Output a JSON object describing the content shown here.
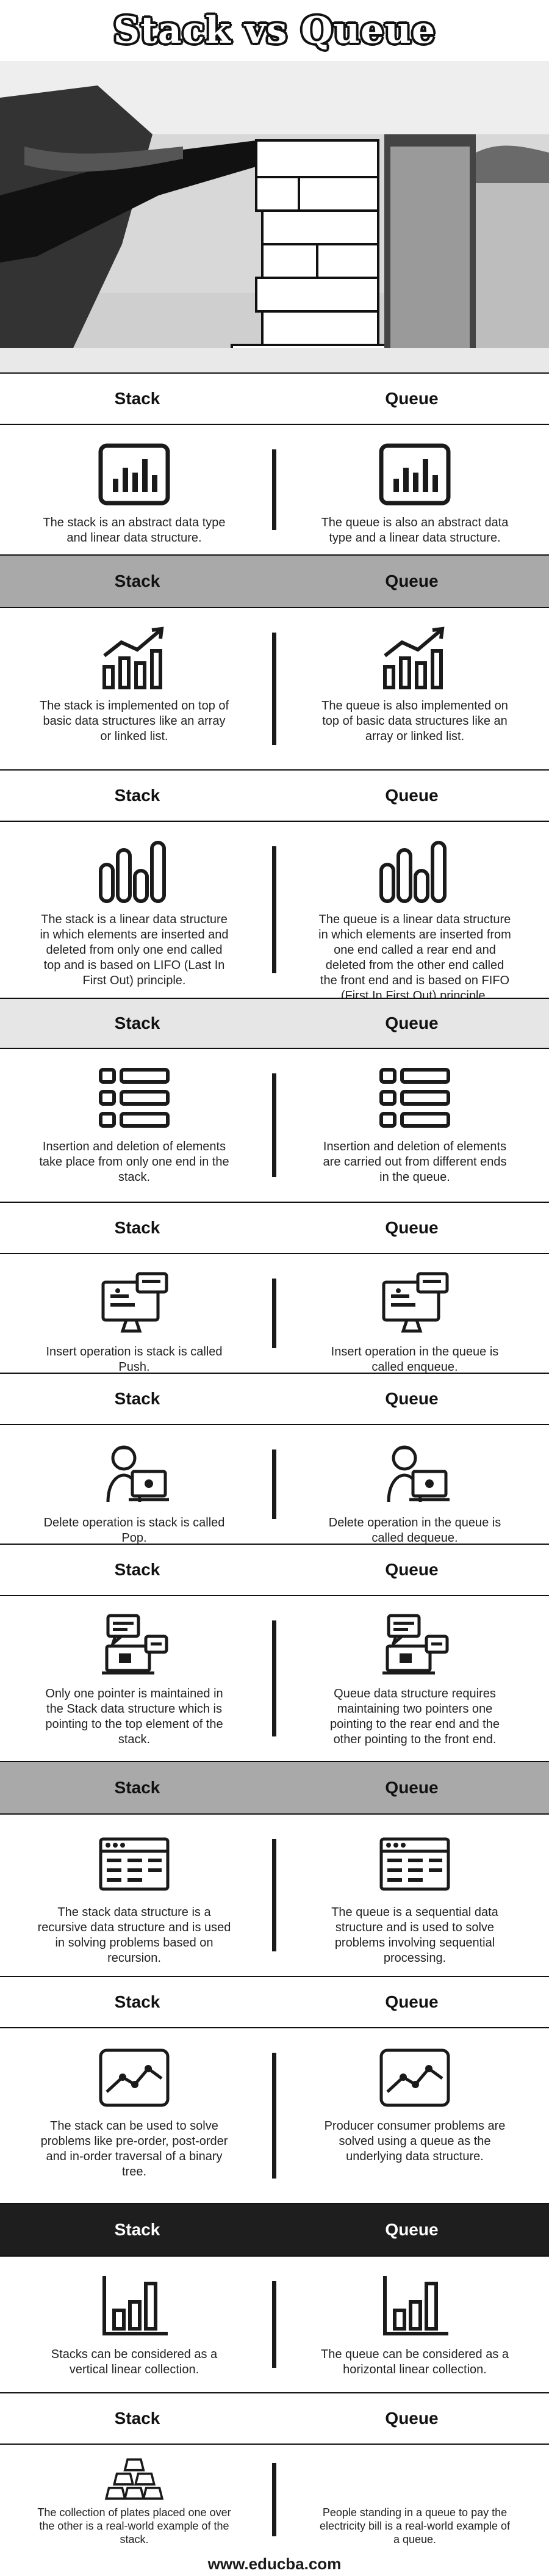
{
  "title": "Stack vs Queue",
  "headers": {
    "left": "Stack",
    "right": "Queue"
  },
  "rows": [
    {
      "icon": "bar-chart-box-icon",
      "left": "The stack is an abstract data type and linear data structure.",
      "right": "The queue is also an abstract data type and a linear data structure."
    },
    {
      "icon": "growth-chart-icon",
      "left": "The stack is implemented on top of basic data structures like an array or linked list.",
      "right": "The queue is also implemented on top of basic data structures like an array or linked list."
    },
    {
      "icon": "rounded-bars-icon",
      "left": "The stack is a linear data structure in which elements are inserted and deleted from only one end called top and is based on LIFO (Last In First Out) principle.",
      "right": "The queue is a linear data structure in which elements are inserted from one end called a rear end and deleted from the other end called the front end and is based on FIFO (First In First Out) principle."
    },
    {
      "icon": "list-icon",
      "left": "Insertion and deletion of elements take place from only one end in the stack.",
      "right": "Insertion and deletion of elements are carried out from different ends in the queue."
    },
    {
      "icon": "monitor-chat-icon",
      "left": "Insert operation is stack is called Push.",
      "right": "Insert operation in the queue is called enqueue."
    },
    {
      "icon": "user-laptop-icon",
      "left": "Delete operation is stack is called Pop.",
      "right": "Delete operation in the queue is called dequeue."
    },
    {
      "icon": "chat-laptop-icon",
      "left": "Only one pointer is maintained in the Stack data structure which is pointing to the top element of the stack.",
      "right": "Queue data structure requires maintaining two pointers one pointing to the rear end and the other pointing to the front end."
    },
    {
      "icon": "browser-window-icon",
      "left": "The stack data structure is a recursive data structure and is used in solving problems based on recursion.",
      "right": "The queue is a sequential data structure and is used to solve problems involving sequential processing."
    },
    {
      "icon": "line-chart-icon",
      "left": "The stack can be used to solve problems like pre-order, post-order and in-order traversal of a binary tree.",
      "right": "Producer consumer problems are solved using a queue as the underlying data structure."
    },
    {
      "icon": "axis-bars-icon",
      "left": "Stacks can be considered as a vertical linear collection.",
      "right": "The queue can be considered as a horizontal linear collection."
    },
    {
      "icon": "gold-bars-icon",
      "left": "The collection of plates placed one over the other is a real-world example of the stack.",
      "right": "People standing in a queue to pay the electricity bill is a real-world example of a queue."
    }
  ],
  "footer": "www.educba.com"
}
